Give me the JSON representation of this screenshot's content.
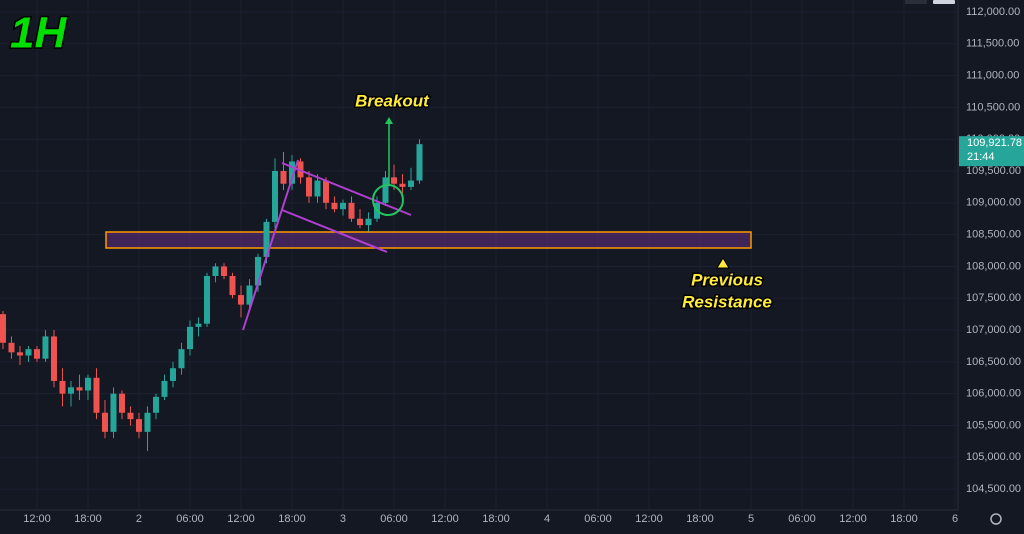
{
  "chart_data": {
    "type": "candlestick",
    "timeframe": "1H",
    "annotations": [
      {
        "text": [
          "Breakout"
        ]
      },
      {
        "text": [
          "Previous",
          "Resistance"
        ]
      }
    ],
    "series": [
      {
        "up_color": "#26a69a",
        "down_color": "#ef5350",
        "x": [
          0,
          1,
          2,
          3,
          4,
          5,
          6,
          7,
          8,
          9,
          10,
          11,
          12,
          13,
          14,
          15,
          16,
          17,
          18,
          19,
          20,
          21,
          22,
          23,
          24,
          25,
          26,
          27,
          28,
          29,
          30,
          31,
          32,
          33,
          34,
          35,
          36,
          37,
          38,
          39,
          40,
          41,
          42,
          43,
          44,
          45,
          46,
          47,
          48,
          49
        ],
        "open": [
          107250,
          106800,
          106650,
          106600,
          106700,
          106550,
          106900,
          106200,
          106000,
          106100,
          106050,
          106250,
          105700,
          105400,
          106000,
          105700,
          105600,
          105400,
          105700,
          105950,
          106200,
          106400,
          106700,
          107050,
          107100,
          107850,
          108000,
          107850,
          107550,
          107400,
          107700,
          108150,
          108700,
          109500,
          109300,
          109650,
          109400,
          109100,
          109350,
          109000,
          108900,
          109000,
          108750,
          108650,
          108750,
          109000,
          109400,
          109300,
          109250,
          109350
        ],
        "high": [
          107300,
          106900,
          106750,
          106750,
          106750,
          107000,
          107000,
          106400,
          106200,
          106300,
          106300,
          106400,
          105900,
          106100,
          106050,
          105800,
          105700,
          105800,
          106000,
          106300,
          106500,
          106800,
          107150,
          107200,
          107900,
          108050,
          108050,
          107900,
          107700,
          107800,
          108200,
          108750,
          109700,
          109800,
          109750,
          109700,
          109500,
          109450,
          109400,
          109100,
          109050,
          109100,
          108900,
          108850,
          109100,
          109500,
          109600,
          109450,
          109550,
          110000
        ],
        "low": [
          106700,
          106550,
          106450,
          106500,
          106500,
          106500,
          106100,
          105800,
          105800,
          105900,
          105900,
          105600,
          105300,
          105300,
          105600,
          105500,
          105300,
          105100,
          105600,
          105900,
          106100,
          106300,
          106600,
          106900,
          107050,
          107750,
          107800,
          107500,
          107200,
          107300,
          107600,
          108050,
          108600,
          109200,
          109200,
          109300,
          109000,
          109000,
          108900,
          108850,
          108800,
          108700,
          108600,
          108550,
          108700,
          108950,
          109200,
          109150,
          109200,
          109300
        ],
        "close": [
          106800,
          106650,
          106600,
          106700,
          106550,
          106900,
          106200,
          106000,
          106100,
          106050,
          106250,
          105700,
          105400,
          106000,
          105700,
          105600,
          105400,
          105700,
          105950,
          106200,
          106400,
          106700,
          107050,
          107100,
          107850,
          108000,
          107850,
          107550,
          107400,
          107700,
          108150,
          108700,
          109500,
          109300,
          109650,
          109400,
          109100,
          109350,
          109000,
          108900,
          109000,
          108750,
          108650,
          108750,
          109000,
          109400,
          109300,
          109250,
          109350,
          109921.78
        ]
      }
    ],
    "last_price": {
      "value": 109921.78,
      "label": "109,921.78"
    },
    "countdown": "21:44",
    "xlim": [
      -0.35,
      112.35
    ],
    "xticks": [
      {
        "value": 4,
        "label": "12:00"
      },
      {
        "value": 10,
        "label": "18:00"
      },
      {
        "value": 16,
        "label": "2"
      },
      {
        "value": 22,
        "label": "06:00"
      },
      {
        "value": 28,
        "label": "12:00"
      },
      {
        "value": 34,
        "label": "18:00"
      },
      {
        "value": 40,
        "label": "3"
      },
      {
        "value": 46,
        "label": "06:00"
      },
      {
        "value": 52,
        "label": "12:00"
      },
      {
        "value": 58,
        "label": "18:00"
      },
      {
        "value": 64,
        "label": "4"
      },
      {
        "value": 70,
        "label": "06:00"
      },
      {
        "value": 76,
        "label": "12:00"
      },
      {
        "value": 82,
        "label": "18:00"
      },
      {
        "value": 88,
        "label": "5"
      },
      {
        "value": 94,
        "label": "06:00"
      },
      {
        "value": 100,
        "label": "12:00"
      },
      {
        "value": 106,
        "label": "18:00"
      },
      {
        "value": 112,
        "label": "6"
      }
    ],
    "ylim": [
      104203,
      112188
    ],
    "yticks": [
      {
        "value": 104500,
        "label": "104,500.00"
      },
      {
        "value": 105000,
        "label": "105,000.00"
      },
      {
        "value": 105500,
        "label": "105,500.00"
      },
      {
        "value": 106000,
        "label": "106,000.00"
      },
      {
        "value": 106500,
        "label": "106,500.00"
      },
      {
        "value": 107000,
        "label": "107,000.00"
      },
      {
        "value": 107500,
        "label": "107,500.00"
      },
      {
        "value": 108000,
        "label": "108,000.00"
      },
      {
        "value": 108500,
        "label": "108,500.00"
      },
      {
        "value": 109000,
        "label": "109,000.00"
      },
      {
        "value": 109500,
        "label": "109,500.00"
      },
      {
        "value": 110000,
        "label": "110,000.00"
      },
      {
        "value": 110500,
        "label": "110,500.00"
      },
      {
        "value": 111000,
        "label": "111,000.00"
      },
      {
        "value": 111500,
        "label": "111,500.00"
      },
      {
        "value": 112000,
        "label": "112,000.00"
      }
    ],
    "grid": true
  }
}
